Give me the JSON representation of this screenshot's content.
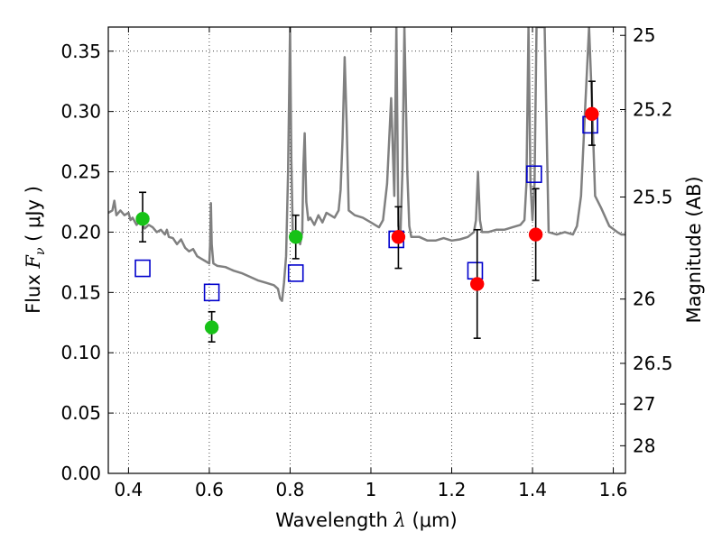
{
  "chart_data": {
    "type": "scatter",
    "xlabel": {
      "prefix": "Wavelength  ",
      "symbol": "λ",
      "unit": " (μm)"
    },
    "ylabel": {
      "prefix": "Flux  ",
      "symbol": "F",
      "subscript": "ν",
      "unit": "  ( μJy )"
    },
    "y2label": "Magnitude (AB)",
    "xlim": [
      0.35,
      1.63
    ],
    "ylim": [
      0.0,
      0.37
    ],
    "grid": true,
    "grid_style": "dotted",
    "x_ticks": [
      {
        "value": 0.4,
        "label": "0.4"
      },
      {
        "value": 0.6,
        "label": "0.6"
      },
      {
        "value": 0.8,
        "label": "0.8"
      },
      {
        "value": 1.0,
        "label": "1"
      },
      {
        "value": 1.2,
        "label": "1.2"
      },
      {
        "value": 1.4,
        "label": "1.4"
      },
      {
        "value": 1.6,
        "label": "1.6"
      }
    ],
    "y_ticks": [
      {
        "value": 0.0,
        "label": "0.00"
      },
      {
        "value": 0.05,
        "label": "0.05"
      },
      {
        "value": 0.1,
        "label": "0.10"
      },
      {
        "value": 0.15,
        "label": "0.15"
      },
      {
        "value": 0.2,
        "label": "0.20"
      },
      {
        "value": 0.25,
        "label": "0.25"
      },
      {
        "value": 0.3,
        "label": "0.30"
      },
      {
        "value": 0.35,
        "label": "0.35"
      }
    ],
    "y2_ticks": [
      {
        "flux": 0.3631,
        "label": "25"
      },
      {
        "flux": 0.3016,
        "label": "25.2"
      },
      {
        "flux": 0.2291,
        "label": "25.5"
      },
      {
        "flux": 0.1445,
        "label": "26"
      },
      {
        "flux": 0.0912,
        "label": "26.5"
      },
      {
        "flux": 0.0575,
        "label": "27"
      },
      {
        "flux": 0.0229,
        "label": "28"
      }
    ],
    "series": [
      {
        "kind": "model",
        "color": "#808080",
        "values": [
          [
            0.35,
            0.216
          ],
          [
            0.36,
            0.218
          ],
          [
            0.365,
            0.226
          ],
          [
            0.37,
            0.214
          ],
          [
            0.38,
            0.218
          ],
          [
            0.39,
            0.214
          ],
          [
            0.4,
            0.216
          ],
          [
            0.405,
            0.21
          ],
          [
            0.41,
            0.212
          ],
          [
            0.42,
            0.206
          ],
          [
            0.43,
            0.21
          ],
          [
            0.44,
            0.203
          ],
          [
            0.45,
            0.206
          ],
          [
            0.46,
            0.204
          ],
          [
            0.47,
            0.2
          ],
          [
            0.48,
            0.202
          ],
          [
            0.49,
            0.198
          ],
          [
            0.495,
            0.202
          ],
          [
            0.5,
            0.196
          ],
          [
            0.51,
            0.195
          ],
          [
            0.52,
            0.19
          ],
          [
            0.53,
            0.194
          ],
          [
            0.54,
            0.187
          ],
          [
            0.55,
            0.184
          ],
          [
            0.56,
            0.186
          ],
          [
            0.57,
            0.18
          ],
          [
            0.58,
            0.178
          ],
          [
            0.59,
            0.176
          ],
          [
            0.6,
            0.174
          ],
          [
            0.602,
            0.19
          ],
          [
            0.604,
            0.224
          ],
          [
            0.606,
            0.19
          ],
          [
            0.61,
            0.174
          ],
          [
            0.62,
            0.172
          ],
          [
            0.64,
            0.171
          ],
          [
            0.66,
            0.168
          ],
          [
            0.68,
            0.166
          ],
          [
            0.7,
            0.163
          ],
          [
            0.72,
            0.16
          ],
          [
            0.74,
            0.158
          ],
          [
            0.76,
            0.156
          ],
          [
            0.77,
            0.153
          ],
          [
            0.775,
            0.145
          ],
          [
            0.78,
            0.143
          ],
          [
            0.785,
            0.158
          ],
          [
            0.79,
            0.18
          ],
          [
            0.795,
            0.25
          ],
          [
            0.8,
            0.37
          ],
          [
            0.803,
            0.26
          ],
          [
            0.807,
            0.192
          ],
          [
            0.815,
            0.194
          ],
          [
            0.82,
            0.196
          ],
          [
            0.825,
            0.19
          ],
          [
            0.83,
            0.2
          ],
          [
            0.833,
            0.255
          ],
          [
            0.836,
            0.282
          ],
          [
            0.84,
            0.225
          ],
          [
            0.845,
            0.21
          ],
          [
            0.85,
            0.212
          ],
          [
            0.86,
            0.206
          ],
          [
            0.87,
            0.214
          ],
          [
            0.88,
            0.208
          ],
          [
            0.89,
            0.216
          ],
          [
            0.9,
            0.214
          ],
          [
            0.91,
            0.212
          ],
          [
            0.92,
            0.218
          ],
          [
            0.925,
            0.235
          ],
          [
            0.93,
            0.278
          ],
          [
            0.935,
            0.345
          ],
          [
            0.94,
            0.29
          ],
          [
            0.945,
            0.218
          ],
          [
            0.96,
            0.214
          ],
          [
            0.98,
            0.212
          ],
          [
            1.0,
            0.208
          ],
          [
            1.01,
            0.206
          ],
          [
            1.02,
            0.204
          ],
          [
            1.03,
            0.21
          ],
          [
            1.04,
            0.24
          ],
          [
            1.05,
            0.311
          ],
          [
            1.058,
            0.23
          ],
          [
            1.063,
            0.37
          ],
          [
            1.068,
            0.205
          ],
          [
            1.073,
            0.198
          ],
          [
            1.078,
            0.25
          ],
          [
            1.083,
            0.37
          ],
          [
            1.09,
            0.25
          ],
          [
            1.095,
            0.205
          ],
          [
            1.1,
            0.196
          ],
          [
            1.12,
            0.196
          ],
          [
            1.14,
            0.193
          ],
          [
            1.16,
            0.193
          ],
          [
            1.18,
            0.195
          ],
          [
            1.2,
            0.193
          ],
          [
            1.22,
            0.194
          ],
          [
            1.24,
            0.196
          ],
          [
            1.255,
            0.2
          ],
          [
            1.26,
            0.21
          ],
          [
            1.265,
            0.25
          ],
          [
            1.27,
            0.21
          ],
          [
            1.275,
            0.2
          ],
          [
            1.29,
            0.2
          ],
          [
            1.31,
            0.202
          ],
          [
            1.33,
            0.202
          ],
          [
            1.35,
            0.204
          ],
          [
            1.37,
            0.206
          ],
          [
            1.38,
            0.21
          ],
          [
            1.385,
            0.24
          ],
          [
            1.39,
            0.37
          ],
          [
            1.395,
            0.24
          ],
          [
            1.4,
            0.21
          ],
          [
            1.405,
            0.24
          ],
          [
            1.41,
            0.37
          ],
          [
            1.42,
            0.37
          ],
          [
            1.43,
            0.37
          ],
          [
            1.44,
            0.2
          ],
          [
            1.46,
            0.198
          ],
          [
            1.48,
            0.2
          ],
          [
            1.5,
            0.198
          ],
          [
            1.51,
            0.205
          ],
          [
            1.52,
            0.23
          ],
          [
            1.53,
            0.3
          ],
          [
            1.54,
            0.37
          ],
          [
            1.548,
            0.3
          ],
          [
            1.555,
            0.23
          ],
          [
            1.57,
            0.22
          ],
          [
            1.59,
            0.205
          ],
          [
            1.61,
            0.2
          ],
          [
            1.62,
            0.198
          ],
          [
            1.63,
            0.198
          ]
        ]
      },
      {
        "kind": "model-photometry",
        "marker": "square",
        "color": "#0000cc",
        "points": [
          {
            "x": 0.435,
            "y": 0.17
          },
          {
            "x": 0.606,
            "y": 0.15
          },
          {
            "x": 0.814,
            "y": 0.166
          },
          {
            "x": 1.063,
            "y": 0.194
          },
          {
            "x": 1.258,
            "y": 0.168
          },
          {
            "x": 1.404,
            "y": 0.248
          },
          {
            "x": 1.543,
            "y": 0.289
          }
        ]
      },
      {
        "kind": "observed",
        "marker": "circle",
        "color": "#17c217",
        "points": [
          {
            "x": 0.435,
            "y": 0.211,
            "err": [
              0.192,
              0.233
            ]
          },
          {
            "x": 0.606,
            "y": 0.121,
            "err": [
              0.109,
              0.134
            ]
          },
          {
            "x": 0.814,
            "y": 0.196,
            "err": [
              0.178,
              0.214
            ]
          }
        ]
      },
      {
        "kind": "observed",
        "marker": "circle",
        "color": "#ff0000",
        "points": [
          {
            "x": 1.068,
            "y": 0.196,
            "err": [
              0.17,
              0.221
            ]
          },
          {
            "x": 1.263,
            "y": 0.157,
            "err": [
              0.112,
              0.202
            ]
          },
          {
            "x": 1.408,
            "y": 0.198,
            "err": [
              0.16,
              0.236
            ]
          },
          {
            "x": 1.547,
            "y": 0.298,
            "err": [
              0.272,
              0.325
            ]
          }
        ]
      }
    ]
  }
}
